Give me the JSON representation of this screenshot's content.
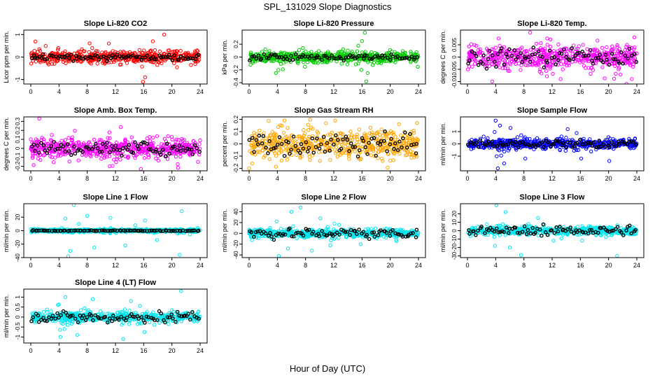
{
  "figure": {
    "title": "SPL_131029  Slope Diagnostics",
    "xlabel": "Hour of Day (UTC)"
  },
  "chart_data": [
    {
      "type": "scatter",
      "title": "Slope Li-820 CO2",
      "ylabel": "Licor ppm per min.",
      "color": "#ff0000",
      "xlim": [
        0,
        24
      ],
      "xticks": [
        0,
        4,
        8,
        12,
        16,
        20,
        24
      ],
      "ylim": [
        -1.2,
        1.2
      ],
      "yticks": [
        -1,
        0,
        1
      ],
      "spread": 0.22,
      "outliers": [
        [
          15.9,
          -1.1
        ],
        [
          16.2,
          -0.9
        ],
        [
          18.9,
          1.0
        ],
        [
          17.3,
          0.7
        ],
        [
          1.2,
          0.35
        ],
        [
          3.9,
          0.4
        ]
      ],
      "black_spread": 0.12
    },
    {
      "type": "scatter",
      "title": "Slope Li-820 Pressure",
      "ylabel": "kPa per min.",
      "color": "#00cc00",
      "xlim": [
        0,
        24
      ],
      "xticks": [
        0,
        4,
        8,
        12,
        16,
        20,
        24
      ],
      "ylim": [
        -0.42,
        0.42
      ],
      "yticks": [
        -0.4,
        -0.2,
        0.0,
        0.2
      ],
      "spread": 0.07,
      "outliers": [
        [
          16.4,
          0.38
        ],
        [
          16.6,
          -0.38
        ],
        [
          16.0,
          0.25
        ],
        [
          16.8,
          -0.25
        ],
        [
          15.9,
          -0.2
        ],
        [
          7.9,
          -0.15
        ],
        [
          3.8,
          -0.25
        ],
        [
          23.9,
          -0.15
        ],
        [
          0.2,
          -0.12
        ]
      ],
      "black_spread": 0.04
    },
    {
      "type": "scatter",
      "title": "Slope Li-820 Temp.",
      "ylabel": "degrees C per min.",
      "color": "#ff00ff",
      "xlim": [
        0,
        24
      ],
      "xticks": [
        0,
        4,
        8,
        12,
        16,
        20,
        24
      ],
      "ylim": [
        -0.011,
        0.011
      ],
      "yticks": [
        -0.01,
        -0.005,
        0.0,
        0.005
      ],
      "spread": 0.004,
      "outliers": [
        [
          8.9,
          0.01
        ],
        [
          3.5,
          -0.01
        ],
        [
          13.2,
          -0.009
        ],
        [
          23.3,
          -0.009
        ]
      ],
      "black_spread": 0.003
    },
    {
      "type": "scatter",
      "title": "Slope Amb. Box Temp.",
      "ylabel": "degrees C per min.",
      "color": "#ff00ff",
      "xlim": [
        0,
        24
      ],
      "xticks": [
        0,
        4,
        8,
        12,
        16,
        20,
        24
      ],
      "ylim": [
        -0.25,
        0.35
      ],
      "yticks": [
        -0.2,
        -0.1,
        0.0,
        0.1,
        0.2,
        0.3
      ],
      "spread": 0.09,
      "outliers": [
        [
          1.2,
          0.33
        ],
        [
          15.6,
          -0.23
        ],
        [
          11.2,
          -0.2
        ],
        [
          23.7,
          -0.15
        ]
      ],
      "black_spread": 0.06
    },
    {
      "type": "scatter",
      "title": "Slope Gas Stream RH",
      "ylabel": "percent per min.",
      "color": "#ffa500",
      "xlim": [
        0,
        24
      ],
      "xticks": [
        0,
        4,
        8,
        12,
        16,
        20,
        24
      ],
      "ylim": [
        -0.22,
        0.22
      ],
      "yticks": [
        -0.2,
        -0.1,
        0.0,
        0.1,
        0.2
      ],
      "spread": 0.1,
      "outliers": [
        [
          0.0,
          -0.2
        ],
        [
          23.8,
          0.17
        ],
        [
          12.2,
          0.19
        ]
      ],
      "black_spread": 0.08
    },
    {
      "type": "scatter",
      "title": "Slope Sample Flow",
      "ylabel": "ml/min per min.",
      "color": "#0000ff",
      "xlim": [
        0,
        24
      ],
      "xticks": [
        0,
        4,
        8,
        12,
        16,
        20,
        24
      ],
      "ylim": [
        -2.2,
        2.2
      ],
      "yticks": [
        -1,
        0,
        1
      ],
      "spread": 0.35,
      "outliers": [
        [
          4.0,
          1.9
        ],
        [
          4.3,
          -2.0
        ],
        [
          4.6,
          1.5
        ],
        [
          5.2,
          -1.6
        ],
        [
          6.1,
          1.3
        ],
        [
          14.2,
          1.2
        ],
        [
          20.1,
          -1.4
        ],
        [
          8.2,
          -1.2
        ]
      ],
      "black_spread": 0.25
    },
    {
      "type": "scatter",
      "title": "Slope Line 1 Flow",
      "ylabel": "ml/min per min.",
      "color": "#00e5ee",
      "xlim": [
        0,
        24
      ],
      "xticks": [
        0,
        4,
        8,
        12,
        16,
        20,
        24
      ],
      "ylim": [
        -40,
        40
      ],
      "yticks": [
        -40,
        -20,
        0,
        20
      ],
      "spread": 2,
      "outliers": [
        [
          6.1,
          38
        ],
        [
          5.6,
          -30
        ],
        [
          4.9,
          18
        ],
        [
          5.3,
          -38
        ],
        [
          8.0,
          22
        ],
        [
          11.3,
          19
        ],
        [
          13.4,
          -22
        ],
        [
          16.2,
          15
        ],
        [
          21.4,
          29
        ],
        [
          21.1,
          -36
        ],
        [
          17.9,
          -14
        ],
        [
          9.0,
          -25
        ],
        [
          6.8,
          10
        ],
        [
          14.8,
          8
        ]
      ],
      "black_spread": 0.6
    },
    {
      "type": "scatter",
      "title": "Slope Line 2 Flow",
      "ylabel": "ml/min per min.",
      "color": "#00e5ee",
      "xlim": [
        0,
        24
      ],
      "xticks": [
        0,
        4,
        8,
        12,
        16,
        20,
        24
      ],
      "ylim": [
        -45,
        55
      ],
      "yticks": [
        -40,
        -20,
        0,
        20,
        40
      ],
      "spread": 6,
      "outliers": [
        [
          7.3,
          48
        ],
        [
          4.2,
          -42
        ],
        [
          6.0,
          40
        ],
        [
          8.9,
          -32
        ],
        [
          5.5,
          -28
        ],
        [
          10.1,
          28
        ],
        [
          11.5,
          -22
        ],
        [
          12.1,
          18
        ],
        [
          3.9,
          22
        ],
        [
          15.8,
          -20
        ]
      ],
      "black_spread": 8
    },
    {
      "type": "scatter",
      "title": "Slope Line 3 Flow",
      "ylabel": "ml/min per min.",
      "color": "#00e5ee",
      "xlim": [
        0,
        24
      ],
      "xticks": [
        0,
        4,
        8,
        12,
        16,
        20,
        24
      ],
      "ylim": [
        -32,
        32
      ],
      "yticks": [
        -30,
        -20,
        -10,
        0,
        10,
        20
      ],
      "spread": 4,
      "outliers": [
        [
          4.1,
          30
        ],
        [
          7.6,
          -29
        ],
        [
          21.2,
          -30
        ],
        [
          5.4,
          22
        ],
        [
          6.0,
          -20
        ],
        [
          10.0,
          15
        ],
        [
          3.9,
          -18
        ],
        [
          12.2,
          -12
        ]
      ],
      "black_spread": 5
    },
    {
      "type": "scatter",
      "title": "Slope Line 4 (LT) Flow",
      "ylabel": "ml/min per min.",
      "color": "#00e5ee",
      "xlim": [
        0,
        24
      ],
      "xticks": [
        0,
        4,
        8,
        12,
        16,
        20,
        24
      ],
      "ylim": [
        -1.3,
        1.4
      ],
      "yticks": [
        -1.0,
        -0.5,
        0.0,
        0.5,
        1.0
      ],
      "spread": 0.22,
      "outliers": [
        [
          21.3,
          1.3
        ],
        [
          4.2,
          -1.0
        ],
        [
          4.9,
          1.0
        ],
        [
          13.1,
          -1.1
        ],
        [
          6.6,
          -0.9
        ],
        [
          8.8,
          0.9
        ],
        [
          14.2,
          0.8
        ]
      ],
      "black_spread": 0.25
    }
  ]
}
